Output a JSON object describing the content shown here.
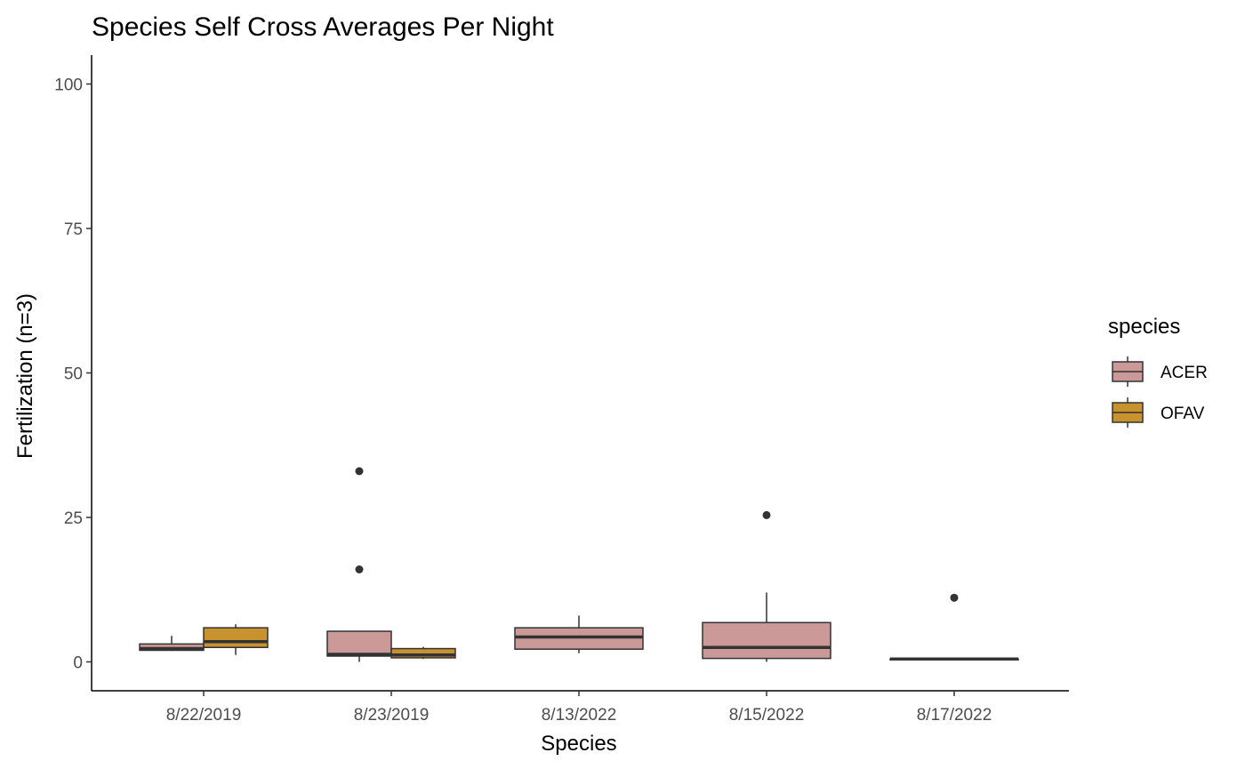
{
  "chart_data": {
    "type": "boxplot",
    "title": "Species Self Cross Averages Per Night",
    "xlabel": "Species",
    "ylabel": "Fertilization (n=3)",
    "ylim": [
      -5,
      105
    ],
    "yticks": [
      0,
      25,
      50,
      75,
      100
    ],
    "grid": false,
    "legend_position": "right",
    "legend": {
      "title": "species",
      "entries": [
        {
          "name": "ACER",
          "color": "#cc9999"
        },
        {
          "name": "OFAV",
          "color": "#c8922e"
        }
      ]
    },
    "categories": [
      "8/22/2019",
      "8/23/2019",
      "8/13/2022",
      "8/15/2022",
      "8/17/2022"
    ],
    "series": [
      {
        "name": "ACER",
        "color": "#cc9999",
        "boxes": [
          {
            "category": "8/22/2019",
            "min": 1.9,
            "q1": 2.0,
            "median": 2.3,
            "q3": 3.1,
            "max": 4.5,
            "outliers": []
          },
          {
            "category": "8/23/2019",
            "min": 0.0,
            "q1": 1.0,
            "median": 1.3,
            "q3": 5.3,
            "max": 5.3,
            "outliers": [
              16.0,
              33.0
            ]
          },
          {
            "category": "8/13/2022",
            "min": 1.5,
            "q1": 2.2,
            "median": 4.3,
            "q3": 5.9,
            "max": 8.0,
            "outliers": []
          },
          {
            "category": "8/15/2022",
            "min": 0.0,
            "q1": 0.6,
            "median": 2.5,
            "q3": 6.8,
            "max": 12.0,
            "outliers": [
              25.4
            ]
          },
          {
            "category": "8/17/2022",
            "min": 0.5,
            "q1": 0.5,
            "median": 0.5,
            "q3": 0.5,
            "max": 0.5,
            "outliers": [
              11.1
            ]
          }
        ]
      },
      {
        "name": "OFAV",
        "color": "#c8922e",
        "boxes": [
          {
            "category": "8/22/2019",
            "min": 1.2,
            "q1": 2.5,
            "median": 3.5,
            "q3": 5.9,
            "max": 6.5,
            "outliers": []
          },
          {
            "category": "8/23/2019",
            "min": 0.5,
            "q1": 0.7,
            "median": 1.2,
            "q3": 2.3,
            "max": 2.6,
            "outliers": []
          }
        ]
      }
    ]
  }
}
